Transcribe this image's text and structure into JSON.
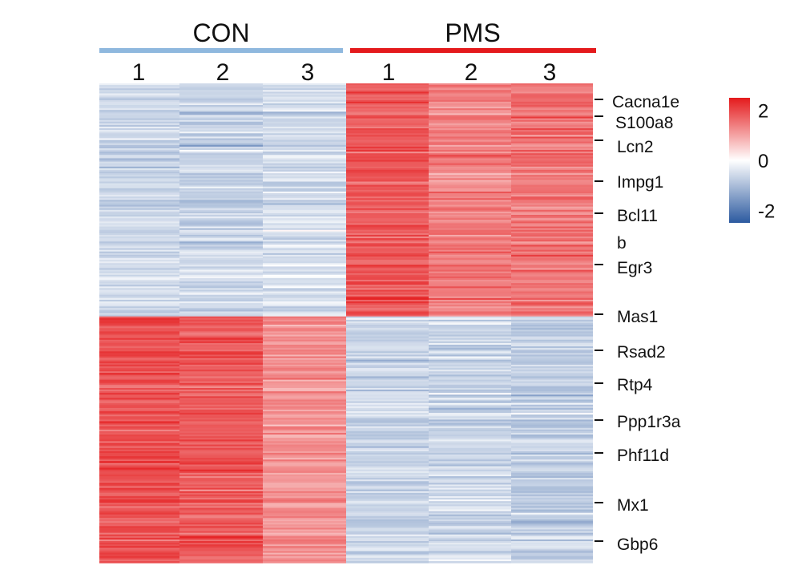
{
  "chart_data": {
    "type": "heatmap",
    "title": "",
    "groups": [
      {
        "label": "CON",
        "color": "#8fb8de",
        "columns": [
          "1",
          "2",
          "3"
        ]
      },
      {
        "label": "PMS",
        "color": "#e41a1c",
        "columns": [
          "1",
          "2",
          "3"
        ]
      }
    ],
    "columns": [
      "CON-1",
      "CON-2",
      "CON-3",
      "PMS-1",
      "PMS-2",
      "PMS-3"
    ],
    "clusters": [
      {
        "name": "",
        "rows": 140,
        "mean_z": [
          -0.6,
          -0.7,
          -0.5,
          1.8,
          1.4,
          1.5
        ]
      },
      {
        "name": "",
        "rows": 148,
        "mean_z": [
          1.9,
          1.8,
          1.2,
          -0.6,
          -0.6,
          -0.7
        ]
      }
    ],
    "gene_labels": [
      {
        "text": "Cacna1e",
        "color": "#e41a1c"
      },
      {
        "text": "S100a8",
        "color": "#111111"
      },
      {
        "text": "Lcn2",
        "color": "#111111"
      },
      {
        "text": "Impg1",
        "color": "#111111"
      },
      {
        "text": "Bcl11",
        "color": "#111111"
      },
      {
        "text": "b",
        "color": "#111111"
      },
      {
        "text": "Egr3",
        "color": "#111111"
      },
      {
        "text": "Mas1",
        "color": "#111111"
      },
      {
        "text": "Rsad2",
        "color": "#111111"
      },
      {
        "text": "Rtp4",
        "color": "#111111"
      },
      {
        "text": "Ppp1r3a",
        "color": "#111111"
      },
      {
        "text": "Phf11d",
        "color": "#111111"
      },
      {
        "text": "Mx1",
        "color": "#111111"
      },
      {
        "text": "Gbp6",
        "color": "#111111"
      }
    ],
    "colorbar": {
      "range": [
        -2.5,
        2.5
      ],
      "ticks": [
        2,
        0,
        -2
      ],
      "tick_labels": [
        "2",
        "0",
        "-2"
      ],
      "colors": {
        "low": "#2c5aa0",
        "mid": "#ffffff",
        "high": "#e41a1c"
      }
    }
  }
}
